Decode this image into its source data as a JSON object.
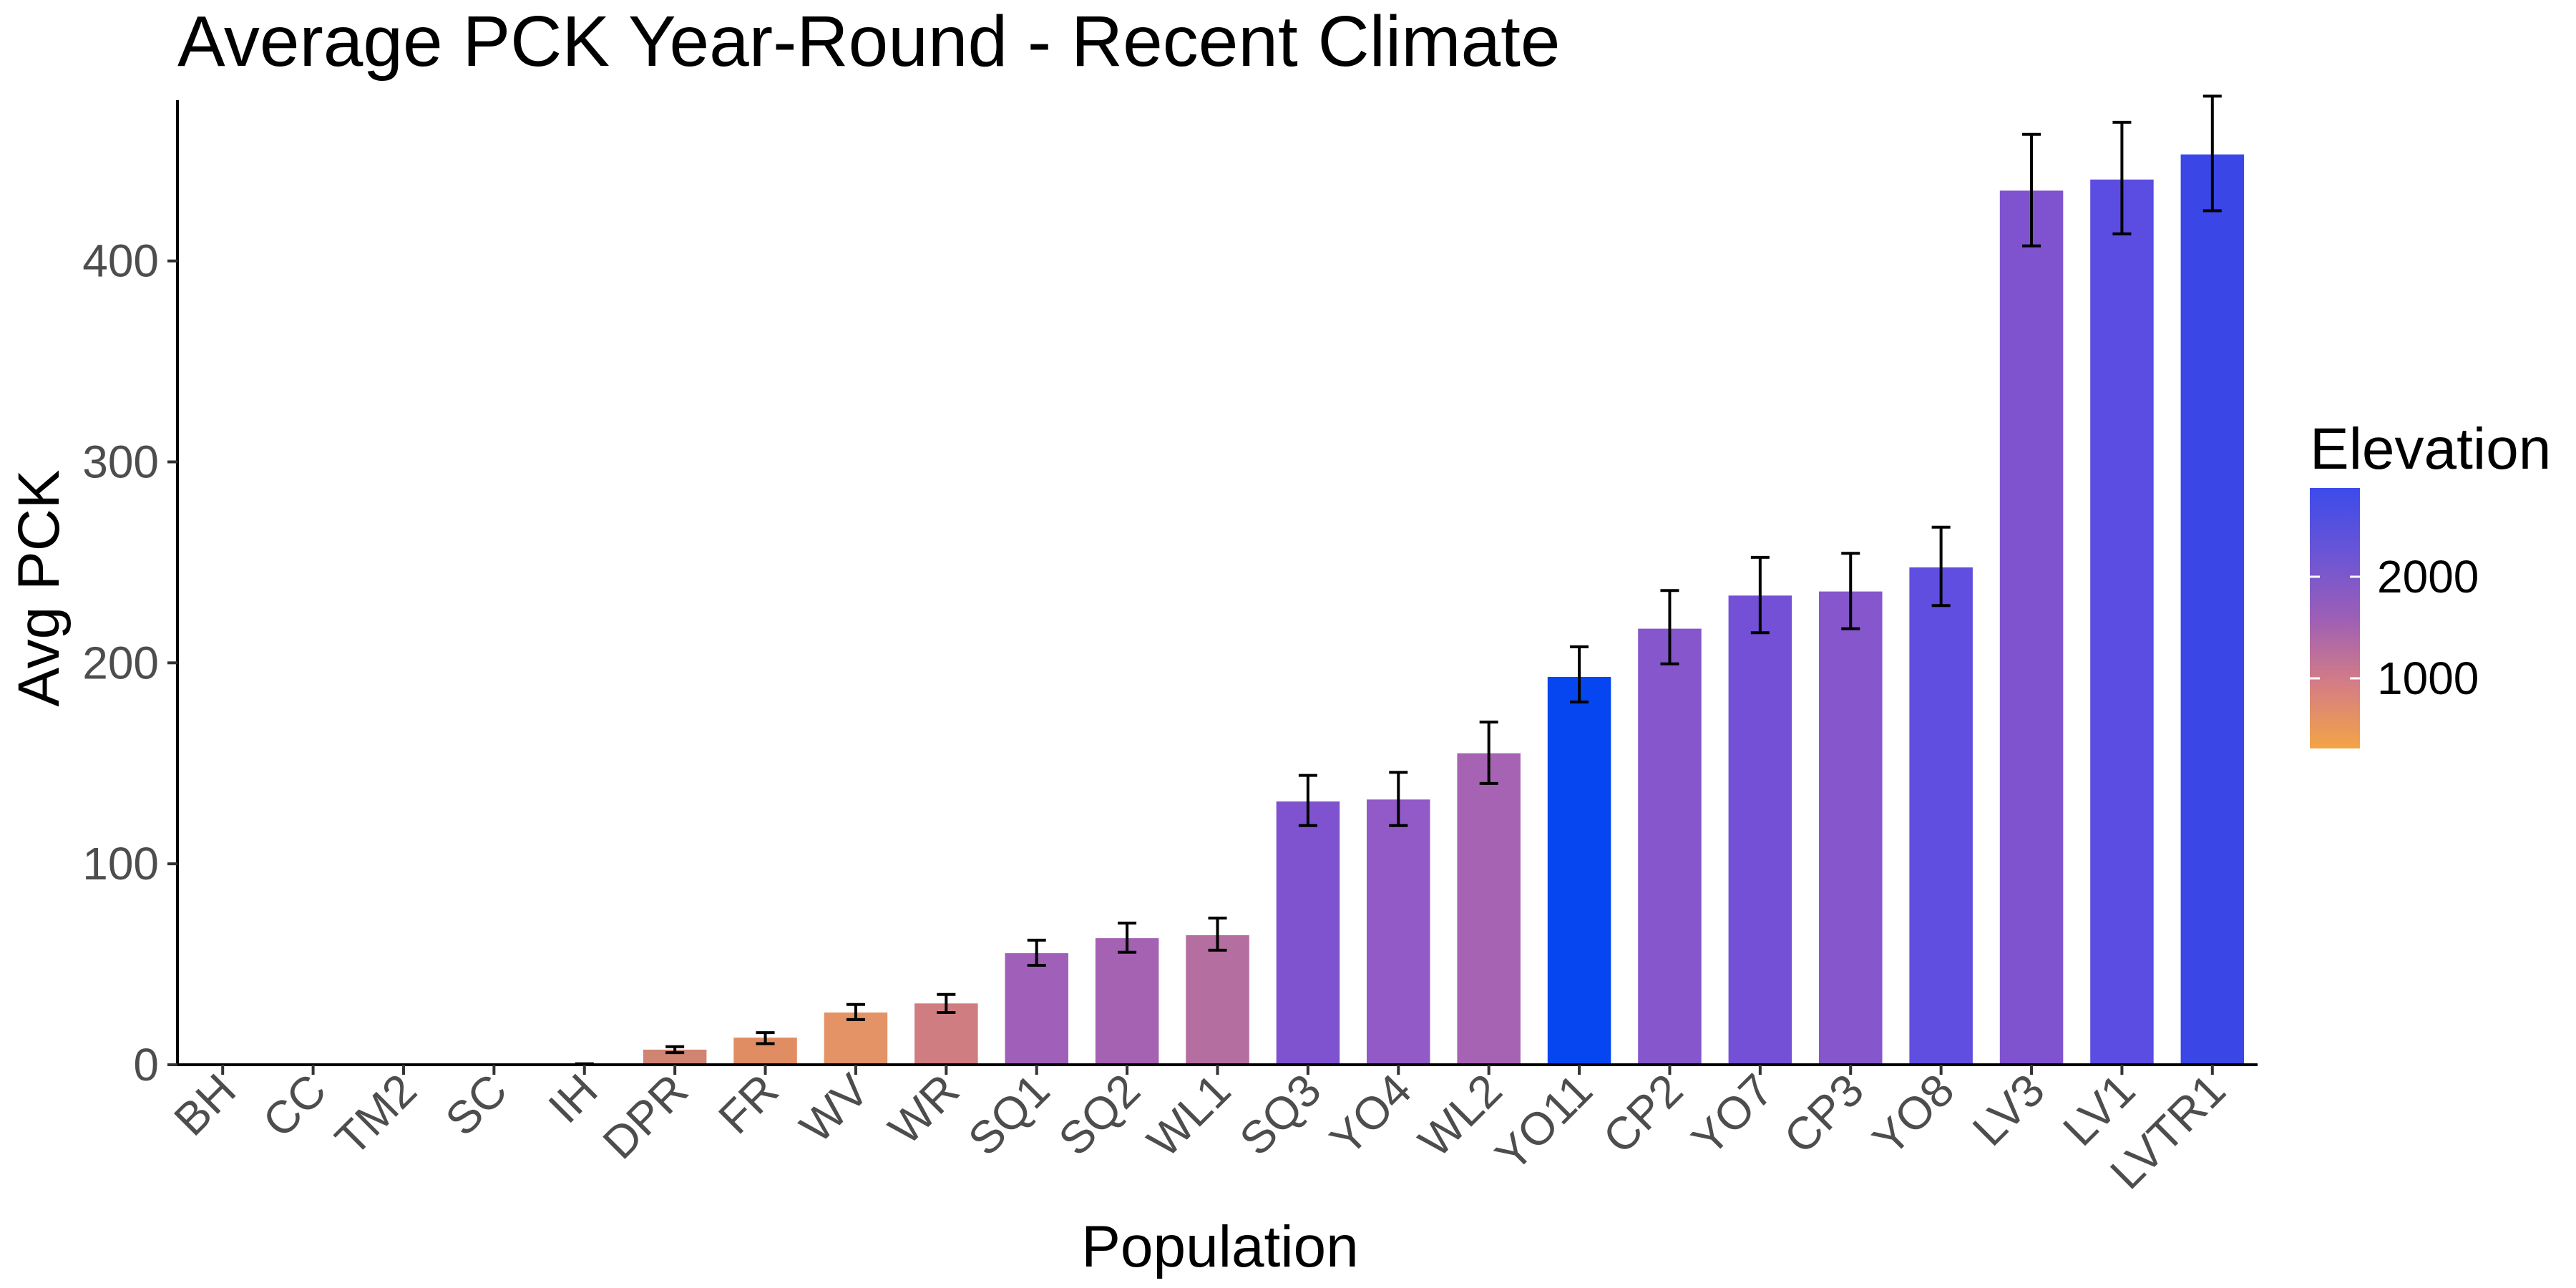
{
  "chart_data": {
    "type": "bar",
    "title": "Average PCK Year-Round - Recent Climate",
    "xlabel": "Population",
    "ylabel": "Avg PCK",
    "ylim": [
      0,
      480
    ],
    "yticks": [
      0,
      100,
      200,
      300,
      400
    ],
    "grid": false,
    "categories": [
      "BH",
      "CC",
      "TM2",
      "SC",
      "IH",
      "DPR",
      "FR",
      "WV",
      "WR",
      "SQ1",
      "SQ2",
      "WL1",
      "SQ3",
      "YO4",
      "WL2",
      "YO11",
      "CP2",
      "YO7",
      "CP3",
      "YO8",
      "LV3",
      "LV1",
      "LVTR1"
    ],
    "values": [
      0,
      0,
      0,
      0,
      0.3,
      7.5,
      13.5,
      26,
      30.5,
      55.5,
      63,
      64.5,
      131,
      132,
      155,
      193,
      217,
      233.5,
      235.5,
      247.5,
      435,
      440.5,
      453
    ],
    "error_low": [
      0,
      0,
      0,
      0,
      0.1,
      6,
      10.5,
      22.5,
      26,
      49.5,
      56,
      57,
      119,
      119,
      140,
      180.5,
      199.5,
      215,
      217,
      228.5,
      407.5,
      413.5,
      425
    ],
    "error_high": [
      0,
      0,
      0,
      0,
      0.5,
      9,
      16,
      30,
      35,
      62,
      70.5,
      73,
      144,
      145.5,
      170.5,
      208,
      236,
      252.5,
      254.5,
      267.5,
      463,
      469,
      482
    ],
    "bar_colors": [
      "#f5a547",
      "#f3a24a",
      "#e99458",
      "#eb9757",
      "#d98d68",
      "#d08472",
      "#e08d63",
      "#e39366",
      "#cf7d80",
      "#a05fb8",
      "#a561b2",
      "#b56ea0",
      "#7f52cf",
      "#915ac7",
      "#a663b3",
      "#0546f0",
      "#8656cc",
      "#7450d6",
      "#8656cc",
      "#604ee0",
      "#7f52cf",
      "#5b4ce2",
      "#3b46e6"
    ],
    "legend": {
      "title": "Elevation",
      "type": "colorbar",
      "position": "right",
      "labels": [
        "2000",
        "1000"
      ],
      "gradient_colors": [
        "#3c4bea",
        "#6a55d6",
        "#9d5fb6",
        "#d47d85",
        "#f3a446"
      ]
    }
  }
}
